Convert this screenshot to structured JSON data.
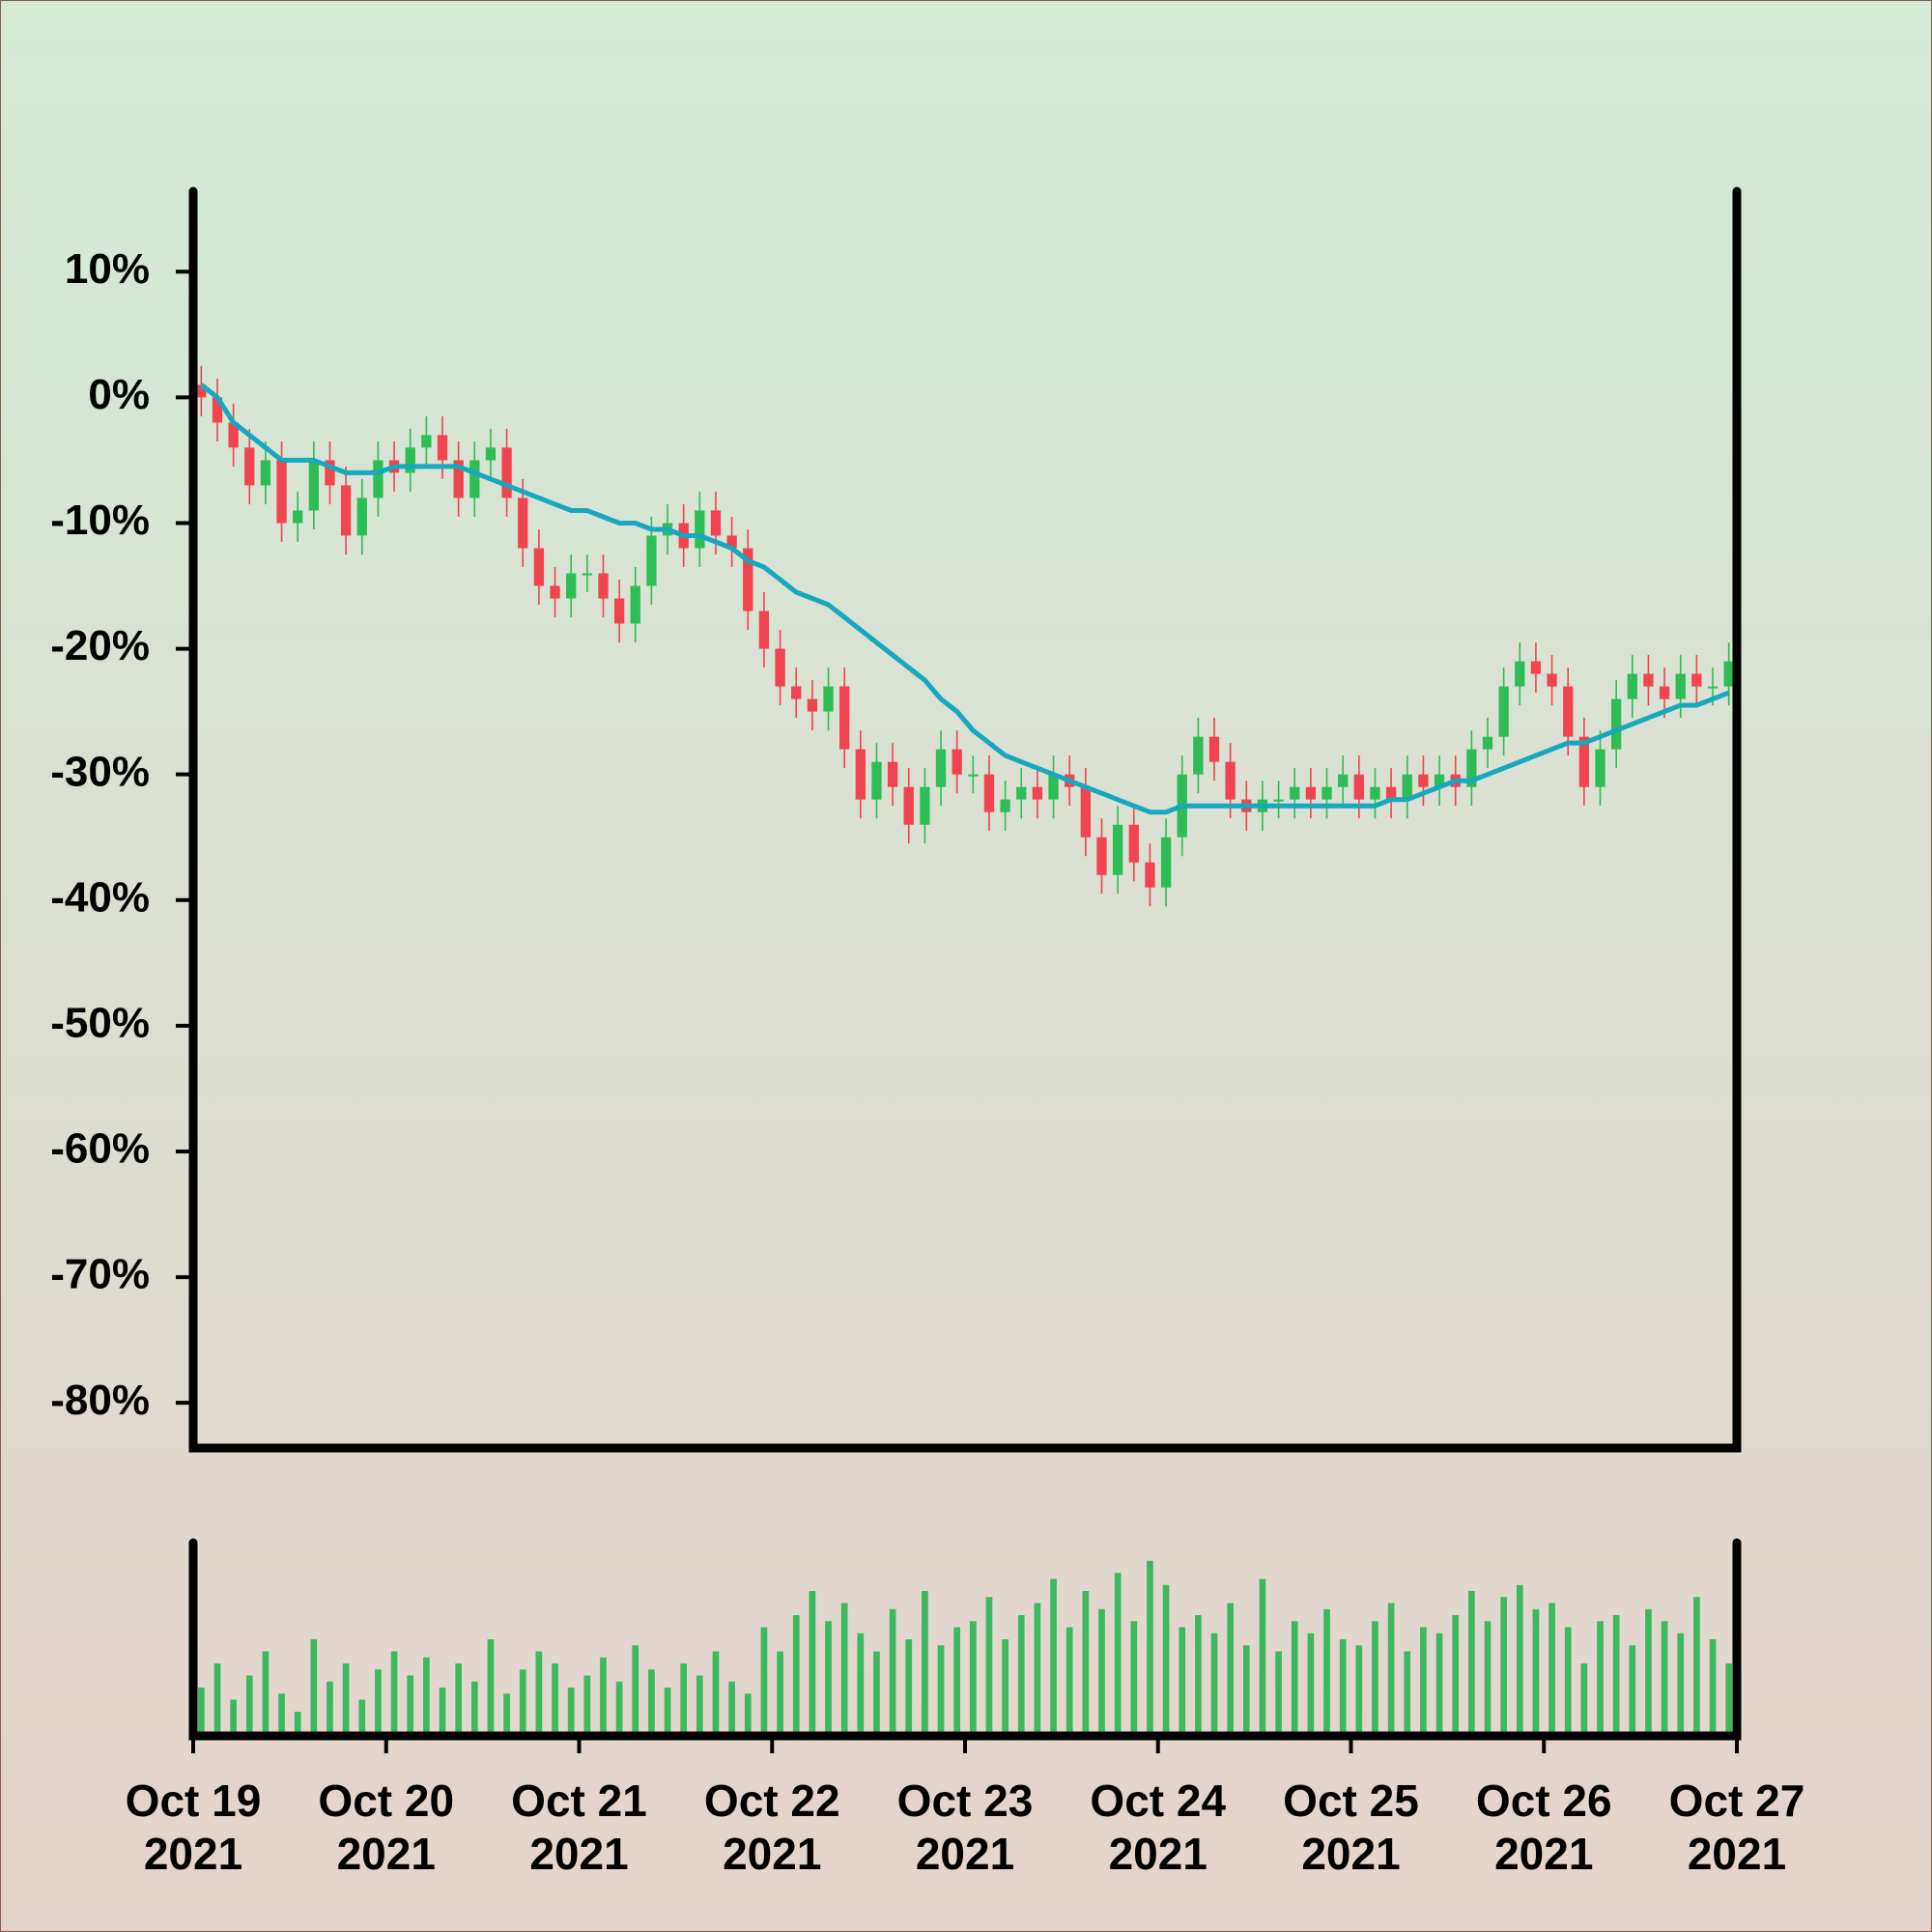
{
  "chart_data": {
    "type": "candlestick",
    "xlim": [
      "2021-10-19",
      "2021-10-27"
    ],
    "xticks": [
      {
        "value": "2021-10-19",
        "label": [
          "Oct 19",
          "2021"
        ]
      },
      {
        "value": "2021-10-20",
        "label": [
          "Oct 20",
          "2021"
        ]
      },
      {
        "value": "2021-10-21",
        "label": [
          "Oct 21",
          "2021"
        ]
      },
      {
        "value": "2021-10-22",
        "label": [
          "Oct 22",
          "2021"
        ]
      },
      {
        "value": "2021-10-23",
        "label": [
          "Oct 23",
          "2021"
        ]
      },
      {
        "value": "2021-10-24",
        "label": [
          "Oct 24",
          "2021"
        ]
      },
      {
        "value": "2021-10-25",
        "label": [
          "Oct 25",
          "2021"
        ]
      },
      {
        "value": "2021-10-26",
        "label": [
          "Oct 26",
          "2021"
        ]
      },
      {
        "value": "2021-10-27",
        "label": [
          "Oct 27",
          "2021"
        ]
      }
    ],
    "ylim": [
      -83.6,
      16.4
    ],
    "yticks": [
      {
        "value": 10,
        "label": "10%"
      },
      {
        "value": 0,
        "label": "0%"
      },
      {
        "value": -10,
        "label": "-10%"
      },
      {
        "value": -20,
        "label": "-20%"
      },
      {
        "value": -30,
        "label": "-30%"
      },
      {
        "value": -40,
        "label": "-40%"
      },
      {
        "value": -50,
        "label": "-50%"
      },
      {
        "value": -60,
        "label": "-60%"
      },
      {
        "value": -70,
        "label": "-70%"
      },
      {
        "value": -80,
        "label": "-80%"
      }
    ],
    "up_color": "#2ebd55",
    "down_color": "#f0444f",
    "open": [
      1,
      0,
      -2,
      -4,
      -7,
      -5,
      -10,
      -9,
      -5,
      -7,
      -11,
      -8,
      -5,
      -6,
      -4,
      -3,
      -5,
      -8,
      -5,
      -4,
      -8,
      -12,
      -15,
      -16,
      -14,
      -14,
      -16,
      -18,
      -15,
      -11,
      -10,
      -12,
      -9,
      -11,
      -12,
      -17,
      -20,
      -23,
      -24,
      -25,
      -23,
      -28,
      -32,
      -29,
      -31,
      -34,
      -31,
      -28,
      -30,
      -30,
      -33,
      -32,
      -31,
      -32,
      -30,
      -31,
      -35,
      -38,
      -34,
      -37,
      -39,
      -35,
      -30,
      -27,
      -29,
      -32,
      -33,
      -32,
      -32,
      -31,
      -32,
      -31,
      -30,
      -32,
      -31,
      -32,
      -30,
      -31,
      -30,
      -31,
      -28,
      -27,
      -23,
      -21,
      -22,
      -23,
      -27,
      -31,
      -28,
      -24,
      -22,
      -23,
      -24,
      -22,
      -23,
      -23
    ],
    "high": [
      2.5,
      1.5,
      -0.5,
      -2.5,
      -3.5,
      -3.5,
      -7.5,
      -3.5,
      -3.5,
      -5.5,
      -6.5,
      -3.5,
      -3.5,
      -2.5,
      -1.5,
      -1.5,
      -3.5,
      -3.5,
      -2.5,
      -2.5,
      -6.5,
      -10.5,
      -13.5,
      -12.5,
      -12.5,
      -12.5,
      -14.5,
      -13.5,
      -9.5,
      -8.5,
      -8.5,
      -7.5,
      -7.5,
      -9.5,
      -10.5,
      -15.5,
      -18.5,
      -21.5,
      -22.5,
      -21.5,
      -21.5,
      -26.5,
      -27.5,
      -27.5,
      -29.5,
      -29.5,
      -26.5,
      -26.5,
      -28.5,
      -28.5,
      -30.5,
      -29.5,
      -29.5,
      -28.5,
      -28.5,
      -29.5,
      -33.5,
      -32.5,
      -32.5,
      -35.5,
      -33.5,
      -28.5,
      -25.5,
      -25.5,
      -27.5,
      -30.5,
      -30.5,
      -30.5,
      -29.5,
      -29.5,
      -29.5,
      -28.5,
      -28.5,
      -29.5,
      -29.5,
      -28.5,
      -28.5,
      -28.5,
      -28.5,
      -26.5,
      -25.5,
      -21.5,
      -19.5,
      -19.5,
      -20.5,
      -21.5,
      -25.5,
      -26.5,
      -22.5,
      -20.5,
      -20.5,
      -21.5,
      -20.5,
      -20.5,
      -21.5,
      -19.5
    ],
    "low": [
      -1.5,
      -3.5,
      -5.5,
      -8.5,
      -8.5,
      -11.5,
      -11.5,
      -10.5,
      -8.5,
      -12.5,
      -12.5,
      -9.5,
      -7.5,
      -7.5,
      -5.5,
      -6.5,
      -9.5,
      -9.5,
      -6.5,
      -9.5,
      -13.5,
      -16.5,
      -17.5,
      -17.5,
      -15.5,
      -17.5,
      -19.5,
      -19.5,
      -16.5,
      -12.5,
      -13.5,
      -13.5,
      -12.5,
      -13.5,
      -18.5,
      -21.5,
      -24.5,
      -25.5,
      -26.5,
      -26.5,
      -29.5,
      -33.5,
      -33.5,
      -32.5,
      -35.5,
      -35.5,
      -32.5,
      -31.5,
      -31.5,
      -34.5,
      -34.5,
      -33.5,
      -33.5,
      -33.5,
      -32.5,
      -36.5,
      -39.5,
      -39.5,
      -38.5,
      -40.5,
      -40.5,
      -36.5,
      -31.5,
      -30.5,
      -33.5,
      -34.5,
      -34.5,
      -33.5,
      -33.5,
      -33.5,
      -33.5,
      -32.5,
      -33.5,
      -33.5,
      -33.5,
      -33.5,
      -32.5,
      -32.5,
      -32.5,
      -32.5,
      -29.5,
      -28.5,
      -24.5,
      -23.5,
      -24.5,
      -28.5,
      -32.5,
      -32.5,
      -29.5,
      -25.5,
      -24.5,
      -25.5,
      -25.5,
      -24.5,
      -24.5,
      -24.5
    ],
    "close": [
      0,
      -2,
      -4,
      -7,
      -5,
      -10,
      -9,
      -5,
      -7,
      -11,
      -8,
      -5,
      -6,
      -4,
      -3,
      -5,
      -8,
      -5,
      -4,
      -8,
      -12,
      -15,
      -16,
      -14,
      -14,
      -16,
      -18,
      -15,
      -11,
      -10,
      -12,
      -9,
      -11,
      -12,
      -17,
      -20,
      -23,
      -24,
      -25,
      -23,
      -28,
      -32,
      -29,
      -31,
      -34,
      -31,
      -28,
      -30,
      -30,
      -33,
      -32,
      -31,
      -32,
      -30,
      -31,
      -35,
      -38,
      -34,
      -37,
      -39,
      -35,
      -30,
      -27,
      -29,
      -32,
      -33,
      -32,
      -32,
      -31,
      -32,
      -31,
      -30,
      -32,
      -31,
      -32,
      -30,
      -31,
      -30,
      -31,
      -28,
      -27,
      -23,
      -21,
      -22,
      -23,
      -27,
      -31,
      -28,
      -24,
      -22,
      -23,
      -24,
      -22,
      -23,
      -23,
      -21
    ],
    "moving_average": {
      "color": "#17a7bf",
      "values": [
        1,
        0,
        -2,
        -3,
        -4,
        -5,
        -5,
        -5,
        -5.5,
        -6,
        -6,
        -6,
        -5.5,
        -5.5,
        -5.5,
        -5.5,
        -5.5,
        -6,
        -6.5,
        -7,
        -7.5,
        -8,
        -8.5,
        -9,
        -9,
        -9.5,
        -10,
        -10,
        -10.5,
        -10.5,
        -11,
        -11,
        -11.5,
        -12,
        -13,
        -13.5,
        -14.5,
        -15.5,
        -16,
        -16.5,
        -17.5,
        -18.5,
        -19.5,
        -20.5,
        -21.5,
        -22.5,
        -24,
        -25,
        -26.5,
        -27.5,
        -28.5,
        -29,
        -29.5,
        -30,
        -30.5,
        -31,
        -31.5,
        -32,
        -32.5,
        -33,
        -33,
        -32.5,
        -32.5,
        -32.5,
        -32.5,
        -32.5,
        -32.5,
        -32.5,
        -32.5,
        -32.5,
        -32.5,
        -32.5,
        -32.5,
        -32.5,
        -32,
        -32,
        -31.5,
        -31,
        -30.5,
        -30.5,
        -30,
        -29.5,
        -29,
        -28.5,
        -28,
        -27.5,
        -27.5,
        -27,
        -26.5,
        -26,
        -25.5,
        -25,
        -24.5,
        -24.5,
        -24,
        -23.5
      ]
    },
    "volume": {
      "color": "#3cb95a",
      "ylim": [
        0,
        160
      ],
      "values": [
        40,
        60,
        30,
        50,
        70,
        35,
        20,
        80,
        45,
        60,
        30,
        55,
        70,
        50,
        65,
        40,
        60,
        45,
        80,
        35,
        55,
        70,
        60,
        40,
        50,
        65,
        45,
        75,
        55,
        40,
        60,
        50,
        70,
        45,
        35,
        90,
        70,
        100,
        120,
        95,
        110,
        85,
        70,
        105,
        80,
        120,
        75,
        90,
        95,
        115,
        80,
        100,
        110,
        130,
        90,
        120,
        105,
        135,
        95,
        145,
        125,
        90,
        100,
        85,
        110,
        75,
        130,
        70,
        95,
        85,
        105,
        80,
        75,
        95,
        110,
        70,
        90,
        85,
        100,
        120,
        95,
        115,
        125,
        105,
        110,
        90,
        60,
        95,
        100,
        75,
        105,
        95,
        85,
        115,
        80,
        60
      ]
    }
  }
}
